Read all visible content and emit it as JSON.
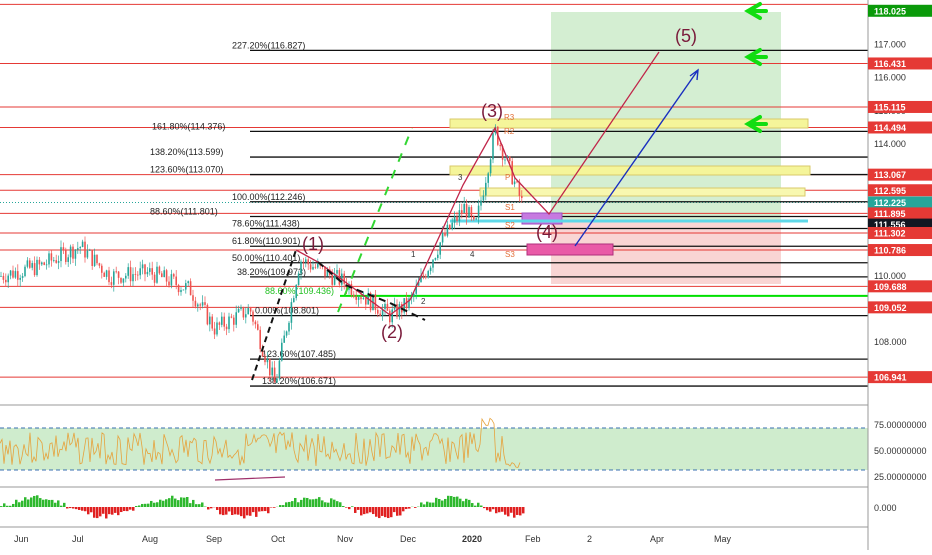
{
  "chart_data": [
    {
      "type": "line",
      "series": [
        {
          "name": "",
          "kind": "candlestick",
          "color_up": "#26a69a",
          "color_down": "#ef5350"
        }
      ],
      "ylim": [
        106.4,
        118.2
      ],
      "y_ticks": [
        "117.000",
        "116.000",
        "115.000",
        "114.000",
        "112.000",
        "110.000",
        "108.000"
      ],
      "x_ticks": [
        "Jun",
        "Jul",
        "Aug",
        "Sep",
        "Oct",
        "Nov",
        "Dec",
        "2020",
        "Feb",
        "2",
        "Apr",
        "May"
      ],
      "price_tags": [
        {
          "price": 118.025,
          "label": "118.025",
          "color": "#0a9a0a"
        },
        {
          "price": 116.431,
          "label": "116.431",
          "color": "#e53935"
        },
        {
          "price": 115.115,
          "label": "115.115",
          "color": "#e53935"
        },
        {
          "price": 114.494,
          "label": "114.494",
          "color": "#e53935"
        },
        {
          "price": 113.067,
          "label": "113.067",
          "color": "#e53935"
        },
        {
          "price": 112.595,
          "label": "112.595",
          "color": "#e53935"
        },
        {
          "price": 112.225,
          "label": "112.225",
          "color": "#26a69a"
        },
        {
          "price": 111.895,
          "label": "111.895",
          "color": "#e53935"
        },
        {
          "price": 111.556,
          "label": "111.556",
          "color": "#131722"
        },
        {
          "price": 111.302,
          "label": "111.302",
          "color": "#e53935"
        },
        {
          "price": 110.786,
          "label": "110.786",
          "color": "#e53935"
        },
        {
          "price": 109.688,
          "label": "109.688",
          "color": "#e53935"
        },
        {
          "price": 109.052,
          "label": "109.052",
          "color": "#e53935"
        },
        {
          "price": 106.941,
          "label": "106.941",
          "color": "#e53935"
        }
      ],
      "fib_labels": [
        {
          "price": 116.827,
          "label": "227.20%(116.827)"
        },
        {
          "price": 114.376,
          "label": "161.80%(114.376)"
        },
        {
          "price": 113.599,
          "label": "138.20%(113.599)"
        },
        {
          "price": 113.07,
          "label": "123.60%(113.070)"
        },
        {
          "price": 112.246,
          "label": "100.00%(112.246)"
        },
        {
          "price": 111.801,
          "label": "88.60%(111.801)"
        },
        {
          "price": 111.438,
          "label": "78.60%(111.438)"
        },
        {
          "price": 110.901,
          "label": "61.80%(110.901)"
        },
        {
          "price": 110.401,
          "label": "50.00%(110.401)"
        },
        {
          "price": 109.973,
          "label": "38.20%(109.973)"
        },
        {
          "price": 109.4,
          "label": "88.60%(109.436)"
        },
        {
          "price": 108.801,
          "label": "0.00%(108.801)"
        },
        {
          "price": 107.485,
          "label": "123.60%(107.485)"
        },
        {
          "price": 106.671,
          "label": "138.20%(106.671)"
        }
      ],
      "wave_labels": [
        "(1)",
        "(2)",
        "(3)",
        "(4)",
        "(5)"
      ],
      "small_labels": [
        "1",
        "2",
        "3",
        "4",
        "R3",
        "R2",
        "P",
        "S1",
        "S2",
        "S3"
      ]
    },
    {
      "type": "line",
      "series": [
        {
          "name": "",
          "color": "#e6a23c"
        }
      ],
      "y_ticks": [
        "75.00000000",
        "50.00000000",
        "25.00000000"
      ],
      "band": [
        30,
        70
      ]
    },
    {
      "type": "bar",
      "series": [
        {
          "name": "",
          "color_pos": "#2eb82e",
          "color_neg": "#e02020"
        }
      ],
      "y_ticks": [
        "0.000"
      ]
    }
  ]
}
